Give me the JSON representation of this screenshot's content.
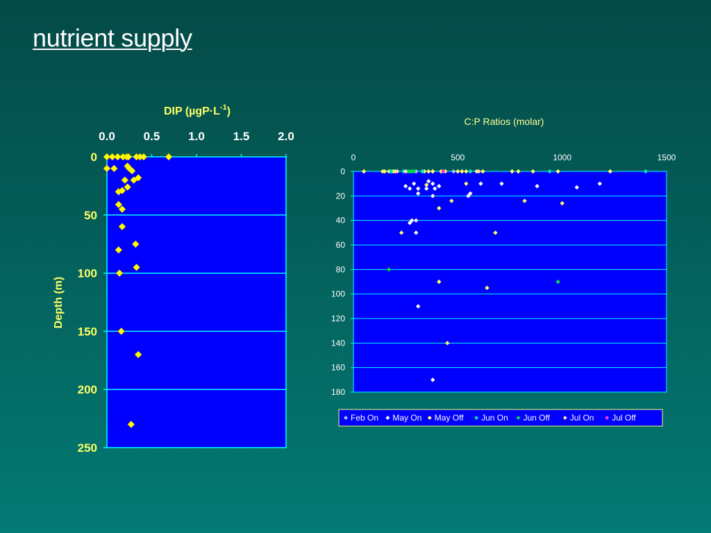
{
  "slide": {
    "title": "nutrient supply"
  },
  "colors": {
    "plot_bg": "#0000ff",
    "dip_label": "#ffff66",
    "dip_tick": "#ffffff",
    "gridline": "#00ffff",
    "dip_marker": "#ffff00",
    "cp_title": "#ffff99",
    "cp_tick": "#ffffff"
  },
  "chart_data": [
    {
      "type": "scatter",
      "title": "DIP (µgP·L",
      "title_superscript": "-1",
      "title_suffix": ")",
      "xlabel": "",
      "ylabel": "Depth (m)",
      "xlim": [
        0,
        2
      ],
      "ylim": [
        250,
        0
      ],
      "x_ticks": [
        "0.0",
        "0.5",
        "1.0",
        "1.5",
        "2.0"
      ],
      "y_ticks": [
        "0",
        "50",
        "100",
        "150",
        "200",
        "250"
      ],
      "grid": "horizontal",
      "series": [
        {
          "marker": "diamond",
          "color": "#ffff00",
          "points": [
            [
              0.0,
              0
            ],
            [
              0.06,
              0
            ],
            [
              0.12,
              0
            ],
            [
              0.18,
              0
            ],
            [
              0.22,
              0
            ],
            [
              0.24,
              0
            ],
            [
              0.33,
              0
            ],
            [
              0.37,
              0
            ],
            [
              0.41,
              0
            ],
            [
              0.69,
              0
            ],
            [
              0.0,
              10
            ],
            [
              0.08,
              10
            ],
            [
              0.23,
              8
            ],
            [
              0.25,
              10
            ],
            [
              0.28,
              12
            ],
            [
              0.2,
              20
            ],
            [
              0.3,
              20
            ],
            [
              0.35,
              18
            ],
            [
              0.23,
              26
            ],
            [
              0.13,
              30
            ],
            [
              0.17,
              29
            ],
            [
              0.13,
              41
            ],
            [
              0.17,
              45
            ],
            [
              0.17,
              60
            ],
            [
              0.32,
              75
            ],
            [
              0.13,
              80
            ],
            [
              0.33,
              95
            ],
            [
              0.14,
              100
            ],
            [
              0.16,
              150
            ],
            [
              0.35,
              170
            ],
            [
              0.27,
              230
            ]
          ]
        }
      ]
    },
    {
      "type": "scatter",
      "title": "C:P Ratios (molar)",
      "xlabel": "",
      "ylabel": "",
      "xlim": [
        0,
        1500
      ],
      "ylim": [
        180,
        0
      ],
      "x_ticks": [
        "0",
        "500",
        "1000",
        "1500"
      ],
      "y_ticks": [
        "0",
        "20",
        "40",
        "60",
        "80",
        "100",
        "120",
        "140",
        "160",
        "180"
      ],
      "grid": "horizontal",
      "legend_position": "bottom",
      "series": [
        {
          "name": "Feb On",
          "color": "#a0c8ff",
          "points": [
            [
              300,
              0
            ],
            [
              380,
              0
            ],
            [
              480,
              0
            ]
          ]
        },
        {
          "name": "May On",
          "color": "#ffffff",
          "points": [
            [
              360,
              8
            ],
            [
              290,
              10
            ],
            [
              380,
              10
            ],
            [
              610,
              10
            ],
            [
              710,
              10
            ],
            [
              1180,
              10
            ],
            [
              250,
              12
            ],
            [
              410,
              12
            ],
            [
              880,
              12
            ],
            [
              1070,
              13
            ],
            [
              270,
              14
            ],
            [
              310,
              14
            ],
            [
              350,
              14
            ],
            [
              390,
              14
            ],
            [
              310,
              18
            ],
            [
              560,
              18
            ],
            [
              380,
              20
            ],
            [
              550,
              20
            ],
            [
              280,
              40
            ],
            [
              300,
              40
            ],
            [
              270,
              42
            ],
            [
              300,
              50
            ],
            [
              310,
              110
            ],
            [
              380,
              170
            ]
          ]
        },
        {
          "name": "May Off",
          "color": "#ffff66",
          "points": [
            [
              50,
              0
            ],
            [
              140,
              0
            ],
            [
              150,
              0
            ],
            [
              170,
              0
            ],
            [
              180,
              0
            ],
            [
              190,
              0
            ],
            [
              200,
              0
            ],
            [
              340,
              0
            ],
            [
              360,
              0
            ],
            [
              380,
              0
            ],
            [
              420,
              0
            ],
            [
              440,
              0
            ],
            [
              500,
              0
            ],
            [
              520,
              0
            ],
            [
              540,
              0
            ],
            [
              560,
              0
            ],
            [
              590,
              0
            ],
            [
              620,
              0
            ],
            [
              760,
              0
            ],
            [
              790,
              0
            ],
            [
              860,
              0
            ],
            [
              980,
              0
            ],
            [
              1230,
              0
            ],
            [
              350,
              11
            ],
            [
              540,
              10
            ],
            [
              470,
              24
            ],
            [
              820,
              24
            ],
            [
              1000,
              26
            ],
            [
              410,
              30
            ],
            [
              230,
              50
            ],
            [
              680,
              50
            ],
            [
              410,
              90
            ],
            [
              640,
              95
            ],
            [
              450,
              140
            ]
          ]
        },
        {
          "name": "Jun On",
          "color": "#00e8c0",
          "points": [
            [
              180,
              0
            ],
            [
              240,
              0
            ],
            [
              330,
              0
            ],
            [
              560,
              0
            ],
            [
              940,
              0
            ],
            [
              1400,
              0
            ]
          ]
        },
        {
          "name": "Jun Off",
          "color": "#00dd44",
          "points": [
            [
              260,
              0
            ],
            [
              270,
              0
            ],
            [
              280,
              0
            ],
            [
              290,
              0
            ],
            [
              170,
              80
            ],
            [
              980,
              90
            ]
          ]
        },
        {
          "name": "Jul On",
          "color": "#ffe0c0",
          "points": [
            [
              210,
              0
            ],
            [
              250,
              0
            ],
            [
              600,
              0
            ]
          ]
        },
        {
          "name": "Jul Off",
          "color": "#ff33ff",
          "points": [
            [
              430,
              0
            ]
          ]
        }
      ]
    }
  ]
}
